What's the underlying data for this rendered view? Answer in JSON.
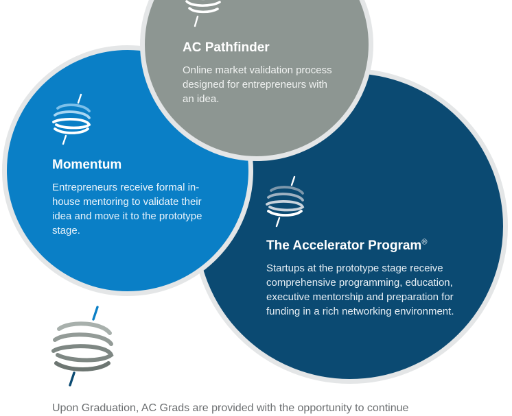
{
  "circles": {
    "pathfinder": {
      "title": "AC Pathfinder",
      "description": "Online market validation process designed for entrepreneurs with an idea.",
      "color": "#8d9692",
      "logo_icon": "spiral-logo-icon"
    },
    "momentum": {
      "title": "Momentum",
      "description": "Entrepreneurs receive formal in-house mentoring to validate their idea and move it to the prototype stage.",
      "color": "#0a7fc6",
      "logo_icon": "spiral-logo-icon"
    },
    "accelerator": {
      "title": "The Accelerator Program",
      "title_mark": "®",
      "description": "Startups at the prototype stage receive comprehensive programming, education, executive mentorship and preparation for funding in a rich networking environment.",
      "color": "#0b4a72",
      "logo_icon": "spiral-logo-icon"
    }
  },
  "bottom_logo_icon": "spiral-logo-icon",
  "footer": {
    "text": "Upon Graduation, AC Grads are provided with the opportunity to continue"
  }
}
